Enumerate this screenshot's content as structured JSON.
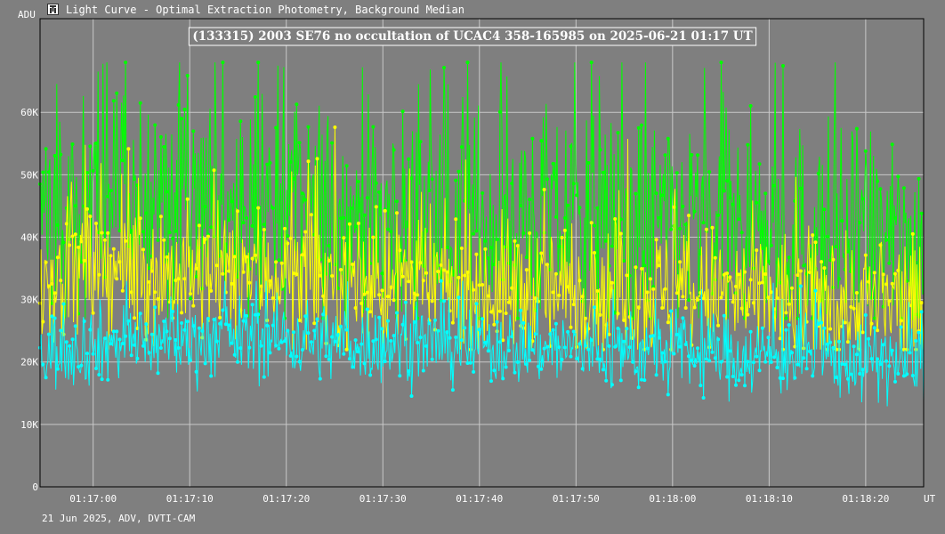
{
  "window": {
    "title": "Light Curve - Optimal Extraction Photometry, Background Median",
    "icon": "tangra-app-icon"
  },
  "footer": {
    "text": "21 Jun 2025, ADV, DVTI-CAM"
  },
  "chart_data": {
    "type": "line",
    "title": "(133315) 2003 SE76 no occultation of UCAC4 358-165985 on 2025-06-21  01:17 UT",
    "ylabel": "ADU",
    "xlabel": "UT",
    "ylim": [
      0,
      75000
    ],
    "xlim": [
      "01:16:54.5",
      "01:18:26.0"
    ],
    "yticks": [
      0,
      10000,
      20000,
      30000,
      40000,
      50000,
      60000
    ],
    "ytick_labels": [
      "0",
      "10K",
      "20K",
      "30K",
      "40K",
      "50K",
      "60K"
    ],
    "xtick_labels": [
      "01:17:00",
      "01:17:10",
      "01:17:20",
      "01:17:30",
      "01:17:40",
      "01:17:50",
      "01:18:00",
      "01:18:10",
      "01:18:20"
    ],
    "grid": true,
    "background": "#7f7f7f",
    "grid_color": "#c8c8c8",
    "series": [
      {
        "color": "#00ff00",
        "x_start": "01:16:54.5",
        "x_end": "01:18:26.0",
        "profile": [
          45000,
          46000,
          46000,
          45500,
          45000,
          46000,
          45000,
          44000,
          43500,
          42500,
          43000,
          42500,
          43000,
          42500,
          42000,
          42000,
          41500,
          42000,
          41000,
          40500,
          40000,
          39500,
          39000,
          38000
        ],
        "spread": 9000,
        "min": 27000,
        "max": 68000
      },
      {
        "color": "#ffff00",
        "x_start": "01:16:54.5",
        "x_end": "01:18:26.0",
        "profile": [
          33500,
          34500,
          35000,
          34500,
          33500,
          34500,
          34000,
          33500,
          33000,
          32500,
          32500,
          31500,
          32000,
          31500,
          31000,
          31500,
          31000,
          31000,
          30500,
          30000,
          30000,
          29500,
          29000,
          28500
        ],
        "spread": 5500,
        "min": 22000,
        "max": 60000
      },
      {
        "color": "#00ffff",
        "x_start": "01:16:54.5",
        "x_end": "01:18:26.0",
        "profile": [
          21500,
          22500,
          23000,
          23500,
          23500,
          24000,
          24000,
          23500,
          23000,
          23000,
          23000,
          22500,
          22500,
          22500,
          22000,
          21500,
          21500,
          21500,
          21000,
          21000,
          21000,
          20500,
          20000,
          20000
        ],
        "spread": 3200,
        "min": 9500,
        "max": 33000
      }
    ]
  }
}
